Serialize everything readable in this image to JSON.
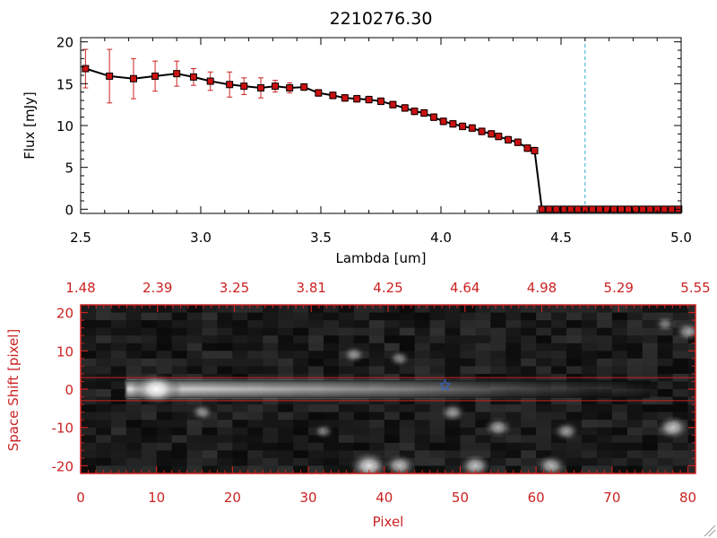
{
  "chart_data": [
    {
      "type": "line",
      "title": "2210276.30",
      "xlabel": "Lambda [um]",
      "ylabel": "Flux [mJy]",
      "xlim": [
        2.5,
        5.0
      ],
      "ylim": [
        -0.5,
        20.5
      ],
      "xticks": [
        "2.5",
        "3.0",
        "3.5",
        "4.0",
        "4.5",
        "5.0"
      ],
      "yticks": [
        "0",
        "5",
        "10",
        "15",
        "20"
      ],
      "x": [
        2.52,
        2.62,
        2.72,
        2.81,
        2.9,
        2.97,
        3.04,
        3.12,
        3.18,
        3.25,
        3.31,
        3.37,
        3.43,
        3.49,
        3.55,
        3.6,
        3.65,
        3.7,
        3.75,
        3.8,
        3.85,
        3.89,
        3.93,
        3.97,
        4.01,
        4.05,
        4.09,
        4.13,
        4.17,
        4.21,
        4.24,
        4.28,
        4.32,
        4.36,
        4.39,
        4.42,
        4.45,
        4.48,
        4.51,
        4.54,
        4.57,
        4.6,
        4.63,
        4.66,
        4.69,
        4.72,
        4.75,
        4.78,
        4.81,
        4.84,
        4.87,
        4.9,
        4.93,
        4.96,
        4.99
      ],
      "series": [
        {
          "values": [
            16.8,
            15.9,
            15.6,
            15.9,
            16.2,
            15.8,
            15.3,
            14.9,
            14.7,
            14.5,
            14.7,
            14.5,
            14.6,
            13.9,
            13.6,
            13.3,
            13.2,
            13.1,
            12.9,
            12.5,
            12.1,
            11.7,
            11.5,
            11.0,
            10.5,
            10.2,
            9.9,
            9.7,
            9.3,
            9.0,
            8.7,
            8.3,
            8.0,
            7.3,
            7.0,
            0.0,
            0.0,
            0.0,
            0.0,
            0.0,
            0.0,
            0.0,
            0.0,
            0.0,
            0.0,
            0.0,
            0.0,
            0.0,
            0.0,
            0.0,
            0.0,
            0.0,
            0.0,
            0.0,
            0.0
          ],
          "errors": [
            2.3,
            3.2,
            2.4,
            1.8,
            1.5,
            1.0,
            1.1,
            1.5,
            1.0,
            1.2,
            0.7,
            0.6,
            0.4,
            0.4,
            0.4,
            0.4,
            0.4,
            0.4,
            0.4,
            0.4,
            0.4,
            0.4,
            0.4,
            0.4,
            0.4,
            0.4,
            0.4,
            0.4,
            0.4,
            0.4,
            0.4,
            0.4,
            0.4,
            0.4,
            0.4,
            0.0,
            0.0,
            0.0,
            0.0,
            0.0,
            0.0,
            0.0,
            0.0,
            0.0,
            0.0,
            0.0,
            0.0,
            0.0,
            0.0,
            0.0,
            0.0,
            0.0,
            0.0,
            0.0,
            0.0
          ],
          "color": "#000000",
          "marker_color": "#cc1111",
          "error_color": "#cc2222"
        }
      ],
      "vertical_line": {
        "x": 4.6,
        "style": "dashed",
        "color": "#33aacc"
      },
      "grid": false
    },
    {
      "type": "heatmap",
      "colormap": "grayscale",
      "xlabel": "Pixel",
      "ylabel": "Space Shift [pixel]",
      "xlim": [
        0,
        81
      ],
      "ylim": [
        -22,
        22
      ],
      "xticks": [
        "0",
        "10",
        "20",
        "30",
        "40",
        "50",
        "60",
        "70",
        "80"
      ],
      "yticks": [
        "-20",
        "-10",
        "0",
        "10",
        "20"
      ],
      "top_axis_ticks": [
        "1.48",
        "2.39",
        "3.25",
        "3.81",
        "4.25",
        "4.64",
        "4.98",
        "5.29",
        "5.55"
      ],
      "aperture_lines": [
        3,
        -3
      ],
      "aperture_color": "#cc2222",
      "axis_color": "#cc2222",
      "star_marker": {
        "x": 48,
        "y": 1,
        "color": "#3366cc"
      },
      "spectral_trace": {
        "y": 0,
        "x_range": [
          6,
          75
        ],
        "peak_x": 10
      },
      "sources": [
        {
          "x": 10,
          "y": 0,
          "brightness": 1.0
        },
        {
          "x": 16,
          "y": -6,
          "brightness": 0.25
        },
        {
          "x": 38,
          "y": -20,
          "brightness": 0.8
        },
        {
          "x": 42,
          "y": -20,
          "brightness": 0.55
        },
        {
          "x": 52,
          "y": -20,
          "brightness": 0.6
        },
        {
          "x": 62,
          "y": -20,
          "brightness": 0.5
        },
        {
          "x": 55,
          "y": -10,
          "brightness": 0.45
        },
        {
          "x": 64,
          "y": -11,
          "brightness": 0.35
        },
        {
          "x": 78,
          "y": -10,
          "brightness": 0.6
        },
        {
          "x": 80,
          "y": 15,
          "brightness": 0.35
        },
        {
          "x": 77,
          "y": 17,
          "brightness": 0.2
        },
        {
          "x": 42,
          "y": 8,
          "brightness": 0.2
        },
        {
          "x": 36,
          "y": 9,
          "brightness": 0.25
        },
        {
          "x": 49,
          "y": -6,
          "brightness": 0.35
        },
        {
          "x": 32,
          "y": -11,
          "brightness": 0.15
        }
      ]
    }
  ]
}
